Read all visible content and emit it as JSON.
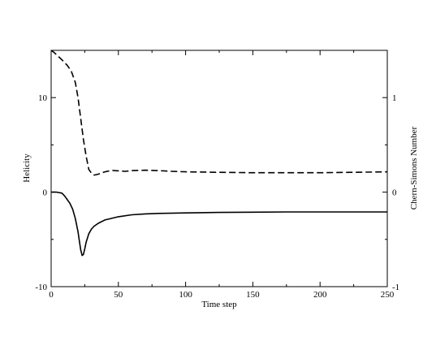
{
  "chart_data": {
    "type": "line",
    "title": "",
    "xlabel": "Time step",
    "ylabel_left": "Helicity",
    "ylabel_right": "Chern-Simons Number",
    "xlim": [
      0,
      250
    ],
    "ylim_left": [
      -10,
      15
    ],
    "ylim_right": [
      -1,
      1.5
    ],
    "x_ticks": [
      0,
      50,
      100,
      150,
      200,
      250
    ],
    "y_ticks_left": [
      -10,
      0,
      10
    ],
    "y_ticks_right": [
      -1,
      0,
      1
    ],
    "grid": false,
    "legend": "none",
    "series": [
      {
        "axis": "left",
        "style": "solid",
        "color": "#000000",
        "x": [
          0,
          4,
          8,
          10,
          12,
          14,
          16,
          18,
          20,
          21,
          22,
          23,
          24,
          25,
          26,
          28,
          30,
          32,
          35,
          40,
          50,
          60,
          70,
          80,
          100,
          125,
          150,
          175,
          200,
          225,
          250
        ],
        "y": [
          0,
          0,
          -0.1,
          -0.4,
          -0.8,
          -1.2,
          -1.8,
          -2.8,
          -4.2,
          -5.2,
          -6.1,
          -6.7,
          -6.6,
          -6.0,
          -5.3,
          -4.4,
          -3.9,
          -3.6,
          -3.3,
          -2.95,
          -2.6,
          -2.4,
          -2.3,
          -2.25,
          -2.2,
          -2.15,
          -2.12,
          -2.1,
          -2.1,
          -2.1,
          -2.1
        ]
      },
      {
        "axis": "right",
        "style": "dashed",
        "color": "#000000",
        "x": [
          0,
          2,
          5,
          8,
          12,
          15,
          18,
          20,
          22,
          24,
          26,
          28,
          30,
          32,
          35,
          38,
          40,
          45,
          50,
          55,
          60,
          70,
          80,
          90,
          100,
          125,
          150,
          175,
          200,
          225,
          250
        ],
        "y": [
          1.5,
          1.48,
          1.44,
          1.4,
          1.34,
          1.28,
          1.16,
          1.0,
          0.78,
          0.56,
          0.38,
          0.24,
          0.2,
          0.18,
          0.19,
          0.205,
          0.215,
          0.23,
          0.225,
          0.22,
          0.228,
          0.232,
          0.228,
          0.22,
          0.215,
          0.21,
          0.205,
          0.205,
          0.205,
          0.21,
          0.215
        ]
      }
    ]
  }
}
